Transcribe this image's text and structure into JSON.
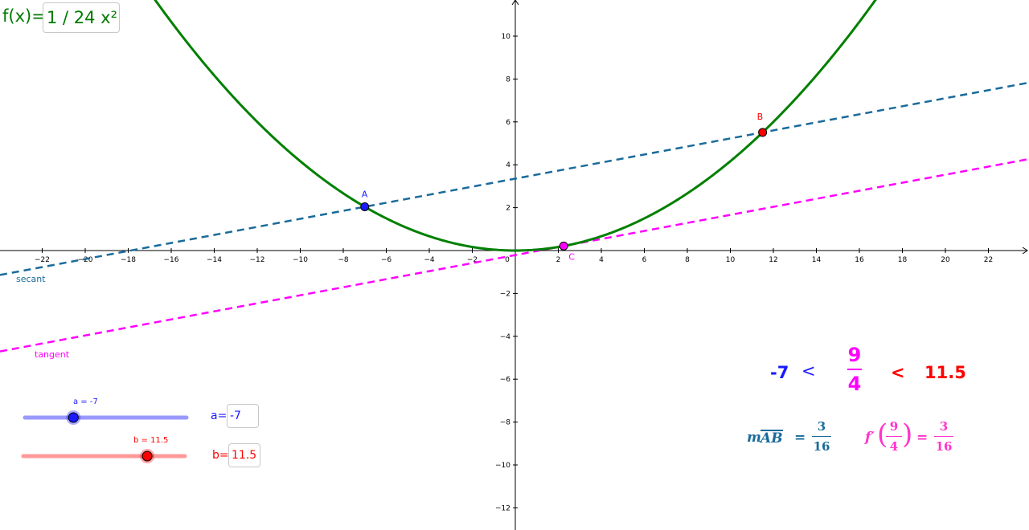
{
  "function": {
    "label": "f(x)=",
    "expression": "1 / 24 x²",
    "color": "#008000"
  },
  "axes": {
    "x_ticks": [
      "−22",
      "−20",
      "−18",
      "−16",
      "−14",
      "−12",
      "−10",
      "−8",
      "−6",
      "−4",
      "−2",
      "0",
      "2",
      "4",
      "6",
      "8",
      "10",
      "12",
      "14",
      "16",
      "18",
      "20",
      "22"
    ],
    "y_ticks": [
      "10",
      "8",
      "6",
      "4",
      "2",
      "−2",
      "−4",
      "−6",
      "−8",
      "−10",
      "−12"
    ]
  },
  "points": {
    "A": {
      "label": "A",
      "x": -7,
      "y": 2.0417,
      "color": "#1a1aff"
    },
    "B": {
      "label": "B",
      "x": 11.5,
      "y": 5.5104,
      "color": "#ff0000"
    },
    "C": {
      "label": "C",
      "x": 2.25,
      "y": 0.2109,
      "color": "#ff00ff"
    }
  },
  "lines": {
    "secant": {
      "label": "secant",
      "slope": 0.1875,
      "intercept": 3.3542,
      "color": "#1a6b9a"
    },
    "tangent": {
      "label": "tangent",
      "slope": 0.1875,
      "intercept": -0.2109,
      "color": "#ff00ff"
    }
  },
  "sliders": {
    "a": {
      "caption": "a = -7",
      "input_label": "a=",
      "value": "-7",
      "color": "#1a1aff",
      "track_color": "#9999ff",
      "min": -10,
      "max": 0
    },
    "b": {
      "caption": "b = 11.5",
      "input_label": "b=",
      "value": "11.5",
      "color": "#ff0000",
      "track_color": "#ff9999",
      "min": 0,
      "max": 15
    }
  },
  "inequality": {
    "left": "-7",
    "lt1": "<",
    "num": "9",
    "den": "4",
    "lt2": "<",
    "right": "11.5",
    "left_color": "#1a1aff",
    "mid_color": "#ff00ff",
    "right_color": "#ff0000"
  },
  "slope_eq": {
    "m_prefix": "m",
    "segment": "AB",
    "equals": "=",
    "num": "3",
    "den": "16",
    "color": "#1a6b9a"
  },
  "deriv_eq": {
    "func": "f′",
    "arg_num": "9",
    "arg_den": "4",
    "equals": "=",
    "num": "3",
    "den": "16",
    "color": "#ff33cc"
  }
}
